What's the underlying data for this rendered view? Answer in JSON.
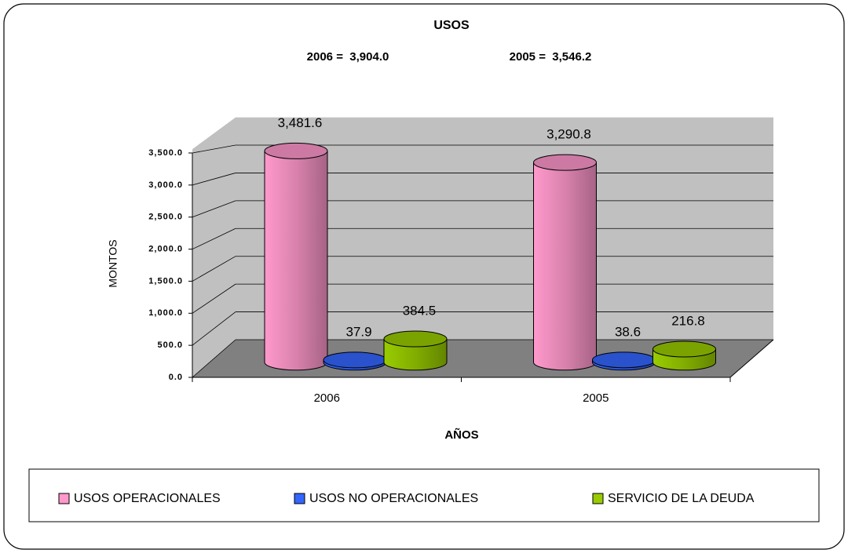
{
  "chart_data": {
    "type": "bar3d",
    "title": "USOS",
    "annotations": [
      "2006 =  3,904.0",
      "2005 =  3,546.2"
    ],
    "y_label": "MONTOS",
    "x_label": "AÑOS",
    "categories": [
      "2006",
      "2005"
    ],
    "series": [
      {
        "name": "USOS OPERACIONALES",
        "color": "#ff99cc",
        "values": [
          3481.6,
          3290.8
        ],
        "value_labels": [
          "3,481.6",
          "3,290.8"
        ]
      },
      {
        "name": "USOS NO OPERACIONALES",
        "color": "#3366ff",
        "values": [
          37.9,
          38.6
        ]
      },
      {
        "name": "SERVICIO DE LA DEUDA",
        "color": "#99cc00",
        "values": [
          384.5,
          216.8
        ]
      }
    ],
    "ylim": [
      0,
      4000
    ],
    "yticks": [
      {
        "value": 0,
        "label": "0.0"
      },
      {
        "value": 500,
        "label": "500.0"
      },
      {
        "value": 1000,
        "label": "1,000.0"
      },
      {
        "value": 1500,
        "label": "1,500.0"
      },
      {
        "value": 2000,
        "label": "2,000.0"
      },
      {
        "value": 2500,
        "label": "2,500.0"
      },
      {
        "value": 3000,
        "label": "3,000.0"
      },
      {
        "value": 3500,
        "label": "3,500.0"
      }
    ],
    "grid": true,
    "legend": "bottom"
  }
}
